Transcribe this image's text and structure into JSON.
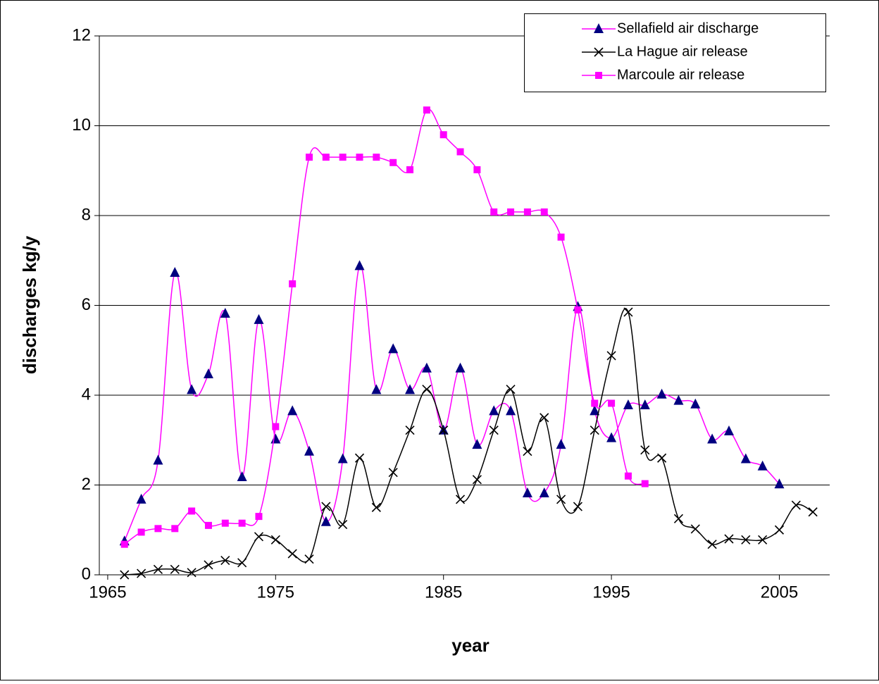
{
  "chart_data": {
    "type": "line",
    "xlabel": "year",
    "ylabel": "discharges kg/y",
    "x": [
      1966,
      1967,
      1968,
      1969,
      1970,
      1971,
      1972,
      1973,
      1974,
      1975,
      1976,
      1977,
      1978,
      1979,
      1980,
      1981,
      1982,
      1983,
      1984,
      1985,
      1986,
      1987,
      1988,
      1989,
      1990,
      1991,
      1992,
      1993,
      1994,
      1995,
      1996,
      1997,
      1998,
      1999,
      2000,
      2001,
      2002,
      2003,
      2004,
      2005,
      2006,
      2007
    ],
    "series": [
      {
        "name": "Sellafield air discharge",
        "color": "#ff00ff",
        "marker": "triangle",
        "marker_color": "#000080",
        "values": [
          0.75,
          1.68,
          2.55,
          6.73,
          4.12,
          4.47,
          5.82,
          2.18,
          5.68,
          3.02,
          3.65,
          2.75,
          1.18,
          2.58,
          6.88,
          4.12,
          5.03,
          4.12,
          4.6,
          3.22,
          4.6,
          2.9,
          3.65,
          3.65,
          1.82,
          1.82,
          2.9,
          5.97,
          3.65,
          3.05,
          3.78,
          3.78,
          4.02,
          3.88,
          3.8,
          3.02,
          3.2,
          2.58,
          2.42,
          2.02,
          null,
          null
        ]
      },
      {
        "name": "La Hague air release",
        "color": "#000000",
        "marker": "x",
        "marker_color": "#000000",
        "values": [
          0,
          0.03,
          0.12,
          0.12,
          0.05,
          0.22,
          0.32,
          0.27,
          0.85,
          0.78,
          0.47,
          0.35,
          1.52,
          1.12,
          2.6,
          1.5,
          2.28,
          3.22,
          4.13,
          3.22,
          1.68,
          2.12,
          3.22,
          4.13,
          2.75,
          3.5,
          1.68,
          1.52,
          3.22,
          4.88,
          5.85,
          2.78,
          2.6,
          1.25,
          1.02,
          0.68,
          0.8,
          0.78,
          0.78,
          1.0,
          1.55,
          1.4
        ]
      },
      {
        "name": "Marcoule air release",
        "color": "#ff00ff",
        "marker": "square",
        "marker_color": "#ff00ff",
        "values": [
          0.68,
          0.95,
          1.03,
          1.03,
          1.42,
          1.1,
          1.15,
          1.15,
          1.3,
          3.3,
          6.48,
          9.3,
          9.3,
          9.3,
          9.3,
          9.3,
          9.18,
          9.02,
          10.35,
          9.8,
          9.42,
          9.02,
          8.08,
          8.08,
          8.08,
          8.08,
          7.52,
          5.9,
          3.82,
          3.82,
          2.2,
          2.03,
          null,
          null,
          null,
          null,
          null,
          null,
          null,
          null,
          null,
          null
        ]
      }
    ],
    "xlim": [
      1964.5,
      2008
    ],
    "xticks": [
      1965,
      1975,
      1985,
      1995,
      2005
    ],
    "ylim": [
      0,
      12
    ],
    "yticks": [
      0,
      2,
      4,
      6,
      8,
      10,
      12
    ],
    "grid": true,
    "smooth": true,
    "legend": "top-right"
  }
}
